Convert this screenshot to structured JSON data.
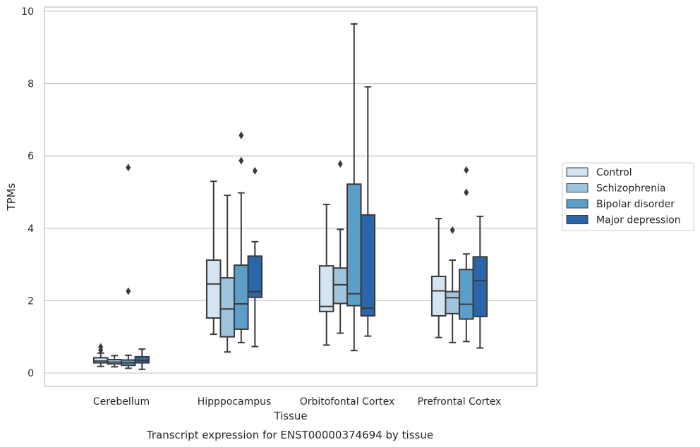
{
  "chart_data": {
    "type": "boxplot",
    "title": "",
    "caption": "Transcript expression for ENST00000374694 by tissue",
    "xlabel": "Tissue",
    "ylabel": "TPMs",
    "ylim": [
      -0.35,
      10.1
    ],
    "yticks": [
      0,
      2,
      4,
      6,
      8,
      10
    ],
    "grid": "horizontal",
    "legend_position": "right",
    "categories": [
      "Cerebellum",
      "Hipppocampus",
      "Orbitofontal Cortex",
      "Prefrontal Cortex"
    ],
    "series": [
      {
        "name": "Control",
        "color": "#d4e4f2",
        "boxes": [
          {
            "whislo": 0.18,
            "q1": 0.28,
            "med": 0.33,
            "q3": 0.42,
            "whishi": 0.55,
            "fliers": [
              0.63,
              0.72
            ]
          },
          {
            "whislo": 1.07,
            "q1": 1.52,
            "med": 2.46,
            "q3": 3.12,
            "whishi": 5.3,
            "fliers": []
          },
          {
            "whislo": 0.77,
            "q1": 1.7,
            "med": 1.84,
            "q3": 2.96,
            "whishi": 4.66,
            "fliers": []
          },
          {
            "whislo": 0.98,
            "q1": 1.58,
            "med": 2.27,
            "q3": 2.67,
            "whishi": 4.27,
            "fliers": []
          }
        ]
      },
      {
        "name": "Schizophrenia",
        "color": "#9ec4de",
        "boxes": [
          {
            "whislo": 0.17,
            "q1": 0.25,
            "med": 0.3,
            "q3": 0.37,
            "whishi": 0.48,
            "fliers": []
          },
          {
            "whislo": 0.58,
            "q1": 1.0,
            "med": 1.77,
            "q3": 2.63,
            "whishi": 4.91,
            "fliers": []
          },
          {
            "whislo": 1.1,
            "q1": 1.92,
            "med": 2.44,
            "q3": 2.9,
            "whishi": 3.97,
            "fliers": [
              5.78
            ]
          },
          {
            "whislo": 0.84,
            "q1": 1.64,
            "med": 2.08,
            "q3": 2.25,
            "whishi": 3.12,
            "fliers": [
              3.95
            ]
          }
        ]
      },
      {
        "name": "Bipolar disorder",
        "color": "#5d9ec8",
        "boxes": [
          {
            "whislo": 0.13,
            "q1": 0.21,
            "med": 0.28,
            "q3": 0.36,
            "whishi": 0.49,
            "fliers": [
              2.26,
              5.68
            ]
          },
          {
            "whislo": 0.84,
            "q1": 1.21,
            "med": 1.91,
            "q3": 2.98,
            "whishi": 4.98,
            "fliers": [
              5.87,
              6.57
            ]
          },
          {
            "whislo": 0.62,
            "q1": 1.86,
            "med": 2.19,
            "q3": 5.22,
            "whishi": 9.65,
            "fliers": []
          },
          {
            "whislo": 0.87,
            "q1": 1.49,
            "med": 1.9,
            "q3": 2.86,
            "whishi": 3.29,
            "fliers": [
              4.99,
              5.61
            ]
          }
        ]
      },
      {
        "name": "Major depression",
        "color": "#2a66a8",
        "boxes": [
          {
            "whislo": 0.1,
            "q1": 0.28,
            "med": 0.34,
            "q3": 0.45,
            "whishi": 0.66,
            "fliers": []
          },
          {
            "whislo": 0.73,
            "q1": 2.09,
            "med": 2.25,
            "q3": 3.23,
            "whishi": 3.63,
            "fliers": [
              5.59
            ]
          },
          {
            "whislo": 1.02,
            "q1": 1.58,
            "med": 1.79,
            "q3": 4.37,
            "whishi": 7.91,
            "fliers": []
          },
          {
            "whislo": 0.69,
            "q1": 1.56,
            "med": 2.55,
            "q3": 3.21,
            "whishi": 4.33,
            "fliers": []
          }
        ]
      }
    ]
  }
}
